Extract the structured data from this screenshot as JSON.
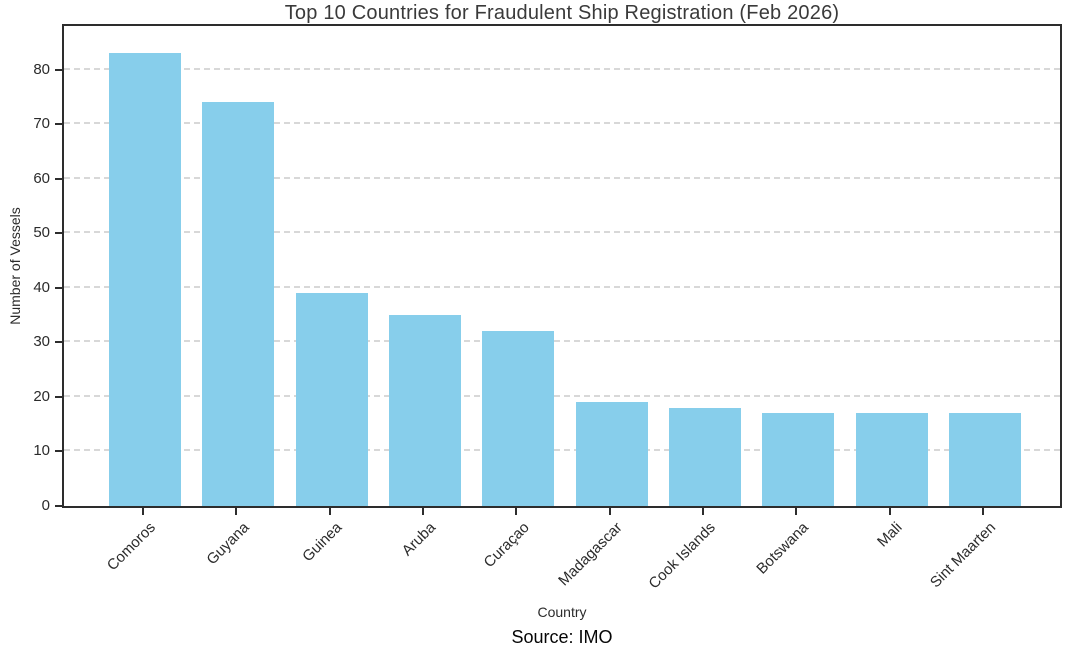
{
  "chart_data": {
    "type": "bar",
    "title": "Top 10 Countries for Fraudulent Ship Registration (Feb 2026)",
    "categories": [
      "Comoros",
      "Guyana",
      "Guinea",
      "Aruba",
      "Curaçao",
      "Madagascar",
      "Cook Islands",
      "Botswana",
      "Mali",
      "Sint Maarten"
    ],
    "values": [
      83,
      74,
      39,
      35,
      32,
      19,
      18,
      17,
      17,
      17
    ],
    "xlabel": "Country",
    "ylabel": "Number of Vessels",
    "yticks": [
      0,
      10,
      20,
      30,
      40,
      50,
      60,
      70,
      80
    ],
    "ylim": [
      0,
      88
    ],
    "grid": "horizontal-dashed",
    "legend": "none",
    "bar_color": "#87CEEB",
    "gridline_color": "#d8d8d8",
    "spine_color": "#2d2d2d",
    "source": "Source: IMO"
  }
}
